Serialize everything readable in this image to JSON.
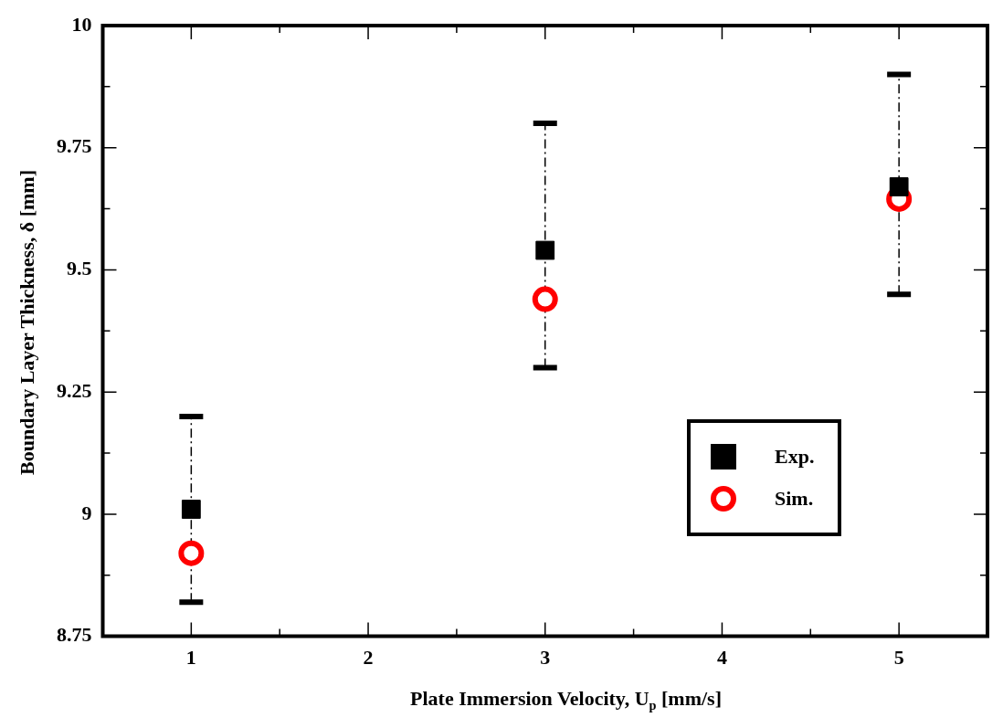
{
  "chart_data": {
    "type": "scatter",
    "xlabel": "Plate Immersion Velocity, U$_{p}$ [mm/s]",
    "ylabel": "Boundary Layer Thickness, δ [mm]",
    "x": [
      1,
      3,
      5
    ],
    "series": [
      {
        "name": "Exp.",
        "color": "#000000",
        "marker": "square",
        "values": [
          9.01,
          9.54,
          9.67
        ],
        "errors": [
          [
            8.82,
            9.2
          ],
          [
            9.3,
            9.8
          ],
          [
            9.45,
            9.9
          ]
        ],
        "line_style": "dashed"
      },
      {
        "name": "Sim.",
        "color": "#ff0000",
        "marker": "circle",
        "values": [
          8.92,
          9.44,
          9.645
        ]
      }
    ],
    "xlim": [
      0.5,
      5.5
    ],
    "xticks": [
      {
        "value": 0.5,
        "label": null
      },
      1,
      {
        "value": 1.5,
        "label": null
      },
      2,
      {
        "value": 2.5,
        "label": null
      },
      3,
      {
        "value": 3.5,
        "label": null
      },
      4,
      {
        "value": 4.5,
        "label": null
      },
      5,
      {
        "value": 5.5,
        "label": null
      }
    ],
    "ylim": [
      8.75,
      10
    ],
    "yticks": [
      8.75,
      {
        "value": 8.875,
        "label": null
      },
      9,
      {
        "value": 9.125,
        "label": null
      },
      9.25,
      {
        "value": 9.375,
        "label": null
      },
      9.5,
      {
        "value": 9.625,
        "label": null
      },
      9.75,
      {
        "value": 9.875,
        "label": null
      },
      10
    ],
    "legend": "bottom right",
    "grid": false
  }
}
